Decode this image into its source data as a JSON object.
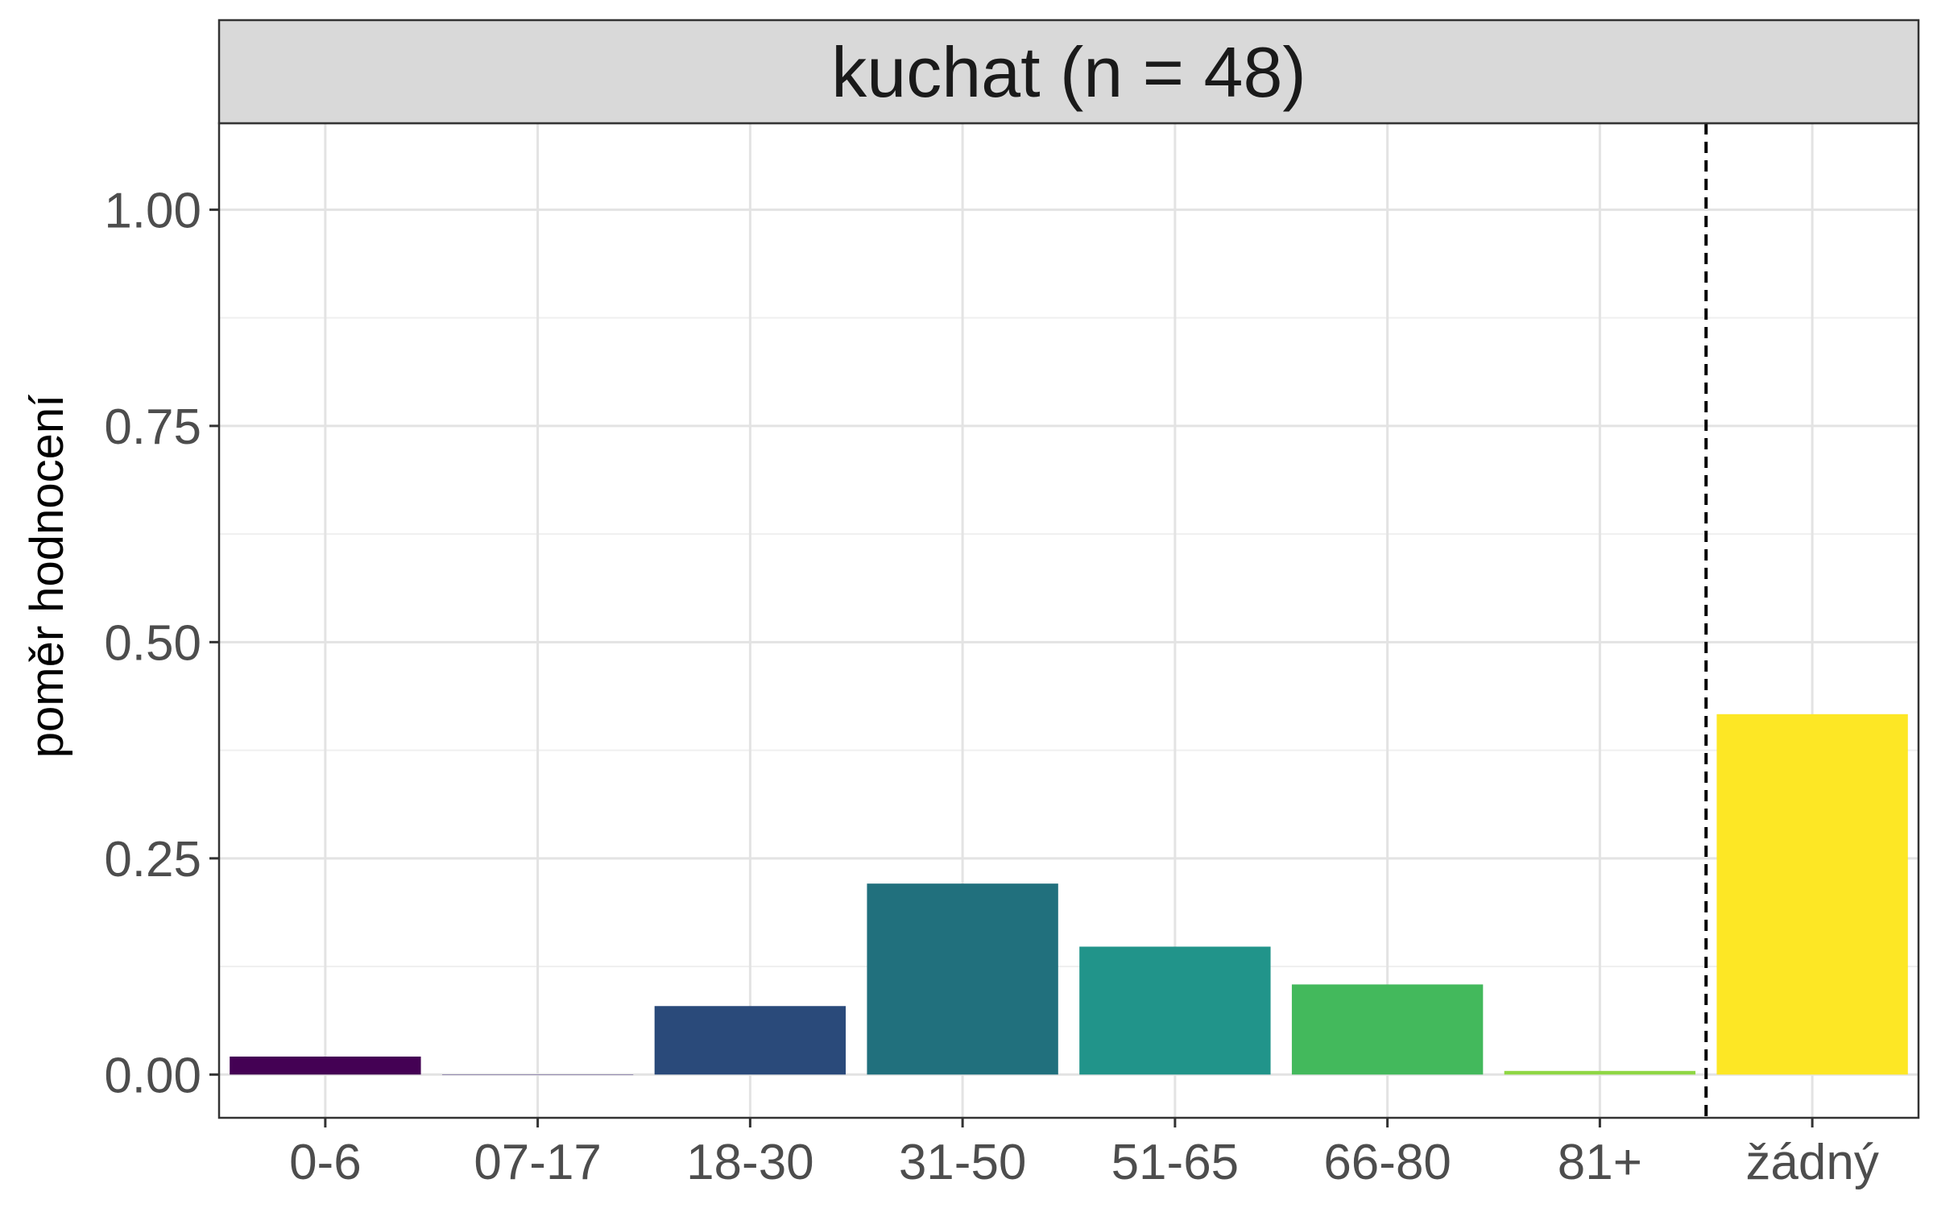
{
  "chart_data": {
    "type": "bar",
    "title": "kuchat (n = 48)",
    "xlabel": "",
    "ylabel": "poměr hodnocení",
    "ylim": [
      -0.05,
      1.1
    ],
    "yticks": [
      0.0,
      0.25,
      0.5,
      0.75,
      1.0
    ],
    "ytick_labels": [
      "0.00",
      "0.25",
      "0.50",
      "0.75",
      "1.00"
    ],
    "categories": [
      "0-6",
      "07-17",
      "18-30",
      "31-50",
      "51-65",
      "66-80",
      "81+",
      "žádný"
    ],
    "values": [
      0.0208,
      0.0,
      0.0792,
      0.2208,
      0.1479,
      0.1042,
      0.0042,
      0.4167
    ],
    "colors": [
      "#440154",
      "#46337E",
      "#2A4A7A",
      "#21707D",
      "#21948A",
      "#43B95C",
      "#8FD744",
      "#FDE725"
    ],
    "reference_line": {
      "between": [
        "81+",
        "žádný"
      ],
      "style": "dashed"
    },
    "grid": true,
    "legend": "none"
  }
}
